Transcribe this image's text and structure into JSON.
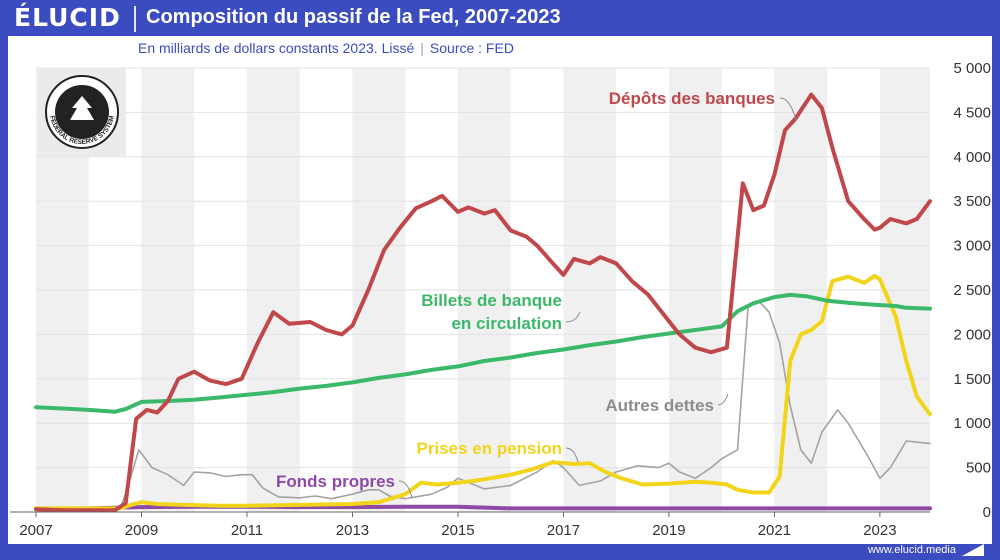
{
  "brand": {
    "logo": "ÉLUCID",
    "url": "www.elucid.media"
  },
  "header": {
    "title": "Composition du passif de la Fed, 2007-2023",
    "subtitle": "En milliards de dollars constants 2023. Lissé",
    "separator": "|",
    "source": "Source : FED"
  },
  "seal": {
    "text_top": "UNITED STATES",
    "text_bottom": "FEDERAL RESERVE SYSTEM"
  },
  "colors": {
    "brand_blue": "#3b4cc0",
    "depots": "#c0474a",
    "billets": "#3cb86a",
    "autres": "#a3a3a3",
    "prises": "#f2d41b",
    "fonds": "#8e4aa5",
    "band": "#f0f0f0"
  },
  "chart_data": {
    "type": "line",
    "title": "Composition du passif de la Fed, 2007-2023",
    "xlabel": "",
    "ylabel": "",
    "xlim": [
      2007,
      2023.95
    ],
    "ylim": [
      0,
      5000
    ],
    "x_ticks": [
      2007,
      2009,
      2011,
      2013,
      2015,
      2017,
      2019,
      2021,
      2023
    ],
    "y_ticks": [
      0,
      500,
      1000,
      1500,
      2000,
      2500,
      3000,
      3500,
      4000,
      4500,
      5000
    ],
    "y_tick_labels": [
      "0",
      "500",
      "1 000",
      "1 500",
      "2 000",
      "2 500",
      "3 000",
      "3 500",
      "4 000",
      "4 500",
      "5 000"
    ],
    "series": [
      {
        "key": "billets",
        "name": "Billets de banque en circulation",
        "label_lines": [
          "Billets de banque",
          "en circulation"
        ],
        "points": [
          [
            2007.0,
            1180
          ],
          [
            2007.5,
            1165
          ],
          [
            2008.0,
            1150
          ],
          [
            2008.5,
            1130
          ],
          [
            2008.7,
            1160
          ],
          [
            2009.0,
            1240
          ],
          [
            2009.5,
            1250
          ],
          [
            2010.0,
            1265
          ],
          [
            2010.5,
            1290
          ],
          [
            2011.0,
            1320
          ],
          [
            2011.5,
            1350
          ],
          [
            2012.0,
            1390
          ],
          [
            2012.5,
            1420
          ],
          [
            2013.0,
            1460
          ],
          [
            2013.5,
            1510
          ],
          [
            2014.0,
            1550
          ],
          [
            2014.5,
            1600
          ],
          [
            2015.0,
            1640
          ],
          [
            2015.5,
            1700
          ],
          [
            2016.0,
            1740
          ],
          [
            2016.5,
            1790
          ],
          [
            2017.0,
            1830
          ],
          [
            2017.5,
            1880
          ],
          [
            2018.0,
            1920
          ],
          [
            2018.5,
            1970
          ],
          [
            2019.0,
            2010
          ],
          [
            2019.5,
            2050
          ],
          [
            2020.0,
            2090
          ],
          [
            2020.3,
            2260
          ],
          [
            2020.6,
            2350
          ],
          [
            2021.0,
            2420
          ],
          [
            2021.3,
            2445
          ],
          [
            2021.6,
            2430
          ],
          [
            2022.0,
            2380
          ],
          [
            2022.5,
            2350
          ],
          [
            2023.0,
            2330
          ],
          [
            2023.3,
            2320
          ],
          [
            2023.5,
            2300
          ],
          [
            2023.95,
            2290
          ]
        ]
      },
      {
        "key": "depots",
        "name": "Dépôts des banques",
        "points": [
          [
            2007.0,
            30
          ],
          [
            2007.5,
            20
          ],
          [
            2008.0,
            20
          ],
          [
            2008.5,
            20
          ],
          [
            2008.7,
            100
          ],
          [
            2008.9,
            1050
          ],
          [
            2009.1,
            1150
          ],
          [
            2009.3,
            1120
          ],
          [
            2009.5,
            1250
          ],
          [
            2009.7,
            1500
          ],
          [
            2010.0,
            1580
          ],
          [
            2010.3,
            1480
          ],
          [
            2010.6,
            1440
          ],
          [
            2010.9,
            1500
          ],
          [
            2011.2,
            1900
          ],
          [
            2011.5,
            2250
          ],
          [
            2011.8,
            2120
          ],
          [
            2012.0,
            2130
          ],
          [
            2012.2,
            2140
          ],
          [
            2012.5,
            2050
          ],
          [
            2012.8,
            2000
          ],
          [
            2013.0,
            2100
          ],
          [
            2013.3,
            2500
          ],
          [
            2013.6,
            2950
          ],
          [
            2013.9,
            3200
          ],
          [
            2014.2,
            3420
          ],
          [
            2014.5,
            3500
          ],
          [
            2014.7,
            3560
          ],
          [
            2015.0,
            3380
          ],
          [
            2015.2,
            3430
          ],
          [
            2015.5,
            3360
          ],
          [
            2015.7,
            3400
          ],
          [
            2016.0,
            3170
          ],
          [
            2016.3,
            3100
          ],
          [
            2016.5,
            3000
          ],
          [
            2016.8,
            2800
          ],
          [
            2017.0,
            2670
          ],
          [
            2017.2,
            2850
          ],
          [
            2017.5,
            2800
          ],
          [
            2017.7,
            2870
          ],
          [
            2018.0,
            2800
          ],
          [
            2018.3,
            2600
          ],
          [
            2018.6,
            2450
          ],
          [
            2018.8,
            2300
          ],
          [
            2019.0,
            2150
          ],
          [
            2019.2,
            2000
          ],
          [
            2019.5,
            1850
          ],
          [
            2019.8,
            1800
          ],
          [
            2020.1,
            1850
          ],
          [
            2020.4,
            3700
          ],
          [
            2020.6,
            3400
          ],
          [
            2020.8,
            3450
          ],
          [
            2021.0,
            3800
          ],
          [
            2021.2,
            4300
          ],
          [
            2021.4,
            4430
          ],
          [
            2021.7,
            4700
          ],
          [
            2021.9,
            4550
          ],
          [
            2022.1,
            4100
          ],
          [
            2022.4,
            3500
          ],
          [
            2022.7,
            3300
          ],
          [
            2022.9,
            3180
          ],
          [
            2023.0,
            3200
          ],
          [
            2023.2,
            3300
          ],
          [
            2023.5,
            3250
          ],
          [
            2023.7,
            3300
          ],
          [
            2023.95,
            3500
          ]
        ]
      },
      {
        "key": "autres",
        "name": "Autres dettes",
        "points": [
          [
            2007.0,
            40
          ],
          [
            2008.6,
            40
          ],
          [
            2008.75,
            300
          ],
          [
            2008.95,
            700
          ],
          [
            2009.2,
            500
          ],
          [
            2009.5,
            420
          ],
          [
            2009.8,
            300
          ],
          [
            2010.0,
            450
          ],
          [
            2010.3,
            440
          ],
          [
            2010.6,
            400
          ],
          [
            2010.9,
            420
          ],
          [
            2011.1,
            420
          ],
          [
            2011.3,
            270
          ],
          [
            2011.6,
            170
          ],
          [
            2012.0,
            160
          ],
          [
            2012.3,
            180
          ],
          [
            2012.6,
            150
          ],
          [
            2013.0,
            200
          ],
          [
            2013.3,
            250
          ],
          [
            2013.5,
            250
          ],
          [
            2013.7,
            180
          ],
          [
            2014.0,
            150
          ],
          [
            2014.5,
            200
          ],
          [
            2014.8,
            280
          ],
          [
            2015.0,
            380
          ],
          [
            2015.5,
            260
          ],
          [
            2016.0,
            300
          ],
          [
            2016.5,
            450
          ],
          [
            2016.8,
            580
          ],
          [
            2017.0,
            500
          ],
          [
            2017.3,
            300
          ],
          [
            2017.7,
            350
          ],
          [
            2018.0,
            450
          ],
          [
            2018.4,
            520
          ],
          [
            2018.8,
            500
          ],
          [
            2019.0,
            550
          ],
          [
            2019.2,
            450
          ],
          [
            2019.5,
            380
          ],
          [
            2019.8,
            500
          ],
          [
            2020.0,
            600
          ],
          [
            2020.3,
            700
          ],
          [
            2020.5,
            2300
          ],
          [
            2020.7,
            2380
          ],
          [
            2020.9,
            2250
          ],
          [
            2021.1,
            1900
          ],
          [
            2021.3,
            1200
          ],
          [
            2021.5,
            700
          ],
          [
            2021.7,
            550
          ],
          [
            2021.9,
            900
          ],
          [
            2022.2,
            1150
          ],
          [
            2022.4,
            1000
          ],
          [
            2022.6,
            800
          ],
          [
            2022.8,
            600
          ],
          [
            2023.0,
            380
          ],
          [
            2023.2,
            500
          ],
          [
            2023.5,
            800
          ],
          [
            2023.8,
            780
          ],
          [
            2023.95,
            770
          ]
        ]
      },
      {
        "key": "prises",
        "name": "Prises en pension",
        "points": [
          [
            2007.0,
            40
          ],
          [
            2008.6,
            40
          ],
          [
            2008.8,
            80
          ],
          [
            2009.0,
            110
          ],
          [
            2009.3,
            90
          ],
          [
            2009.8,
            80
          ],
          [
            2010.5,
            70
          ],
          [
            2011.0,
            70
          ],
          [
            2012.0,
            80
          ],
          [
            2013.0,
            90
          ],
          [
            2013.5,
            110
          ],
          [
            2014.0,
            200
          ],
          [
            2014.3,
            330
          ],
          [
            2014.6,
            310
          ],
          [
            2015.0,
            330
          ],
          [
            2015.3,
            350
          ],
          [
            2015.6,
            380
          ],
          [
            2016.0,
            420
          ],
          [
            2016.4,
            480
          ],
          [
            2016.8,
            560
          ],
          [
            2017.2,
            540
          ],
          [
            2017.5,
            550
          ],
          [
            2017.8,
            450
          ],
          [
            2018.1,
            380
          ],
          [
            2018.5,
            310
          ],
          [
            2019.0,
            320
          ],
          [
            2019.5,
            340
          ],
          [
            2019.8,
            330
          ],
          [
            2020.1,
            310
          ],
          [
            2020.3,
            250
          ],
          [
            2020.6,
            220
          ],
          [
            2020.9,
            220
          ],
          [
            2021.1,
            400
          ],
          [
            2021.3,
            1700
          ],
          [
            2021.5,
            2000
          ],
          [
            2021.7,
            2050
          ],
          [
            2021.9,
            2150
          ],
          [
            2022.1,
            2600
          ],
          [
            2022.4,
            2650
          ],
          [
            2022.7,
            2580
          ],
          [
            2022.9,
            2660
          ],
          [
            2023.0,
            2620
          ],
          [
            2023.3,
            2200
          ],
          [
            2023.5,
            1700
          ],
          [
            2023.7,
            1300
          ],
          [
            2023.95,
            1100
          ]
        ]
      },
      {
        "key": "fonds",
        "name": "Fonds propres",
        "points": [
          [
            2007.0,
            35
          ],
          [
            2008.0,
            40
          ],
          [
            2009.0,
            55
          ],
          [
            2010.0,
            60
          ],
          [
            2011.0,
            60
          ],
          [
            2012.0,
            55
          ],
          [
            2013.0,
            55
          ],
          [
            2014.0,
            60
          ],
          [
            2015.0,
            60
          ],
          [
            2016.0,
            40
          ],
          [
            2017.0,
            40
          ],
          [
            2018.0,
            40
          ],
          [
            2019.0,
            40
          ],
          [
            2020.0,
            40
          ],
          [
            2021.0,
            40
          ],
          [
            2022.0,
            40
          ],
          [
            2023.0,
            40
          ],
          [
            2023.95,
            40
          ]
        ]
      }
    ],
    "labels": {
      "depots": "Dépôts des banques",
      "billets_line1": "Billets de banque",
      "billets_line2": "en circulation",
      "autres": "Autres dettes",
      "prises": "Prises en pension",
      "fonds": "Fonds propres"
    }
  }
}
